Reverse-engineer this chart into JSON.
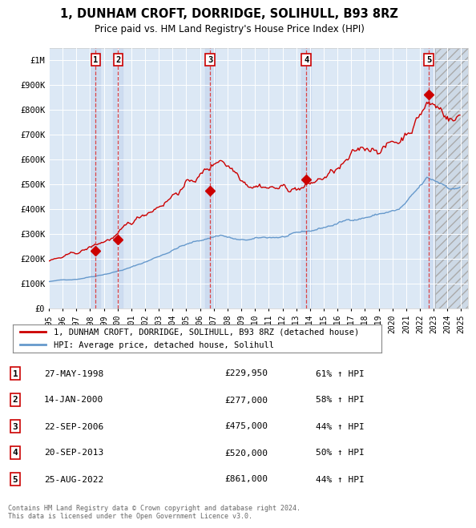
{
  "title": "1, DUNHAM CROFT, DORRIDGE, SOLIHULL, B93 8RZ",
  "subtitle": "Price paid vs. HM Land Registry's House Price Index (HPI)",
  "background_color": "#ffffff",
  "plot_bg_color": "#dce8f5",
  "grid_color": "#ffffff",
  "ylim": [
    0,
    1050000
  ],
  "yticks": [
    0,
    100000,
    200000,
    300000,
    400000,
    500000,
    600000,
    700000,
    800000,
    900000,
    1000000
  ],
  "ytick_labels": [
    "£0",
    "£100K",
    "£200K",
    "£300K",
    "£400K",
    "£500K",
    "£600K",
    "£700K",
    "£800K",
    "£900K",
    "£1M"
  ],
  "xlim_start": 1995.0,
  "xlim_end": 2025.5,
  "transactions": [
    {
      "num": 1,
      "date_label": "27-MAY-1998",
      "year": 1998.41,
      "price": 229950,
      "hpi_pct": "61% ↑ HPI"
    },
    {
      "num": 2,
      "date_label": "14-JAN-2000",
      "year": 2000.04,
      "price": 277000,
      "hpi_pct": "58% ↑ HPI"
    },
    {
      "num": 3,
      "date_label": "22-SEP-2006",
      "year": 2006.73,
      "price": 475000,
      "hpi_pct": "44% ↑ HPI"
    },
    {
      "num": 4,
      "date_label": "20-SEP-2013",
      "year": 2013.73,
      "price": 520000,
      "hpi_pct": "50% ↑ HPI"
    },
    {
      "num": 5,
      "date_label": "25-AUG-2022",
      "year": 2022.65,
      "price": 861000,
      "hpi_pct": "44% ↑ HPI"
    }
  ],
  "hpi_color": "#6699cc",
  "price_color": "#cc0000",
  "transaction_box_color": "#cc0000",
  "dashed_line_color": "#dd3333",
  "highlight_color": "#c8d8ee",
  "legend_label_price": "1, DUNHAM CROFT, DORRIDGE, SOLIHULL, B93 8RZ (detached house)",
  "legend_label_hpi": "HPI: Average price, detached house, Solihull",
  "footer": "Contains HM Land Registry data © Crown copyright and database right 2024.\nThis data is licensed under the Open Government Licence v3.0.",
  "shade_after": 2023.08
}
